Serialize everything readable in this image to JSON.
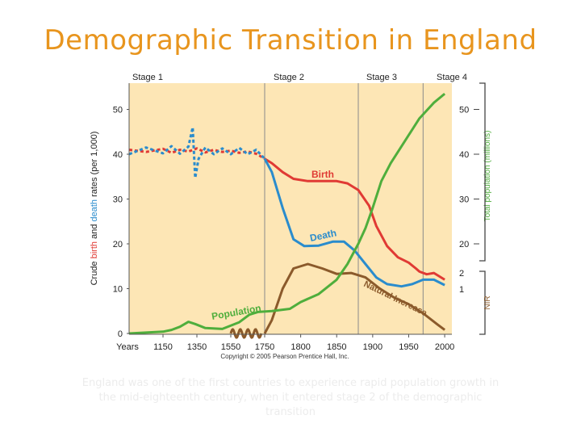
{
  "slide": {
    "title": "Demographic Transition in England",
    "caption": "England was one of the first countries to experience rapid population growth in the mid-eighteenth century, when it entered stage 2 of the demographic transition"
  },
  "chart_data": {
    "type": "line",
    "title": "Demographic Transition in England",
    "stages": [
      {
        "name": "Stage 1",
        "start": 1050,
        "end": 1750
      },
      {
        "name": "Stage 2",
        "start": 1750,
        "end": 1880
      },
      {
        "name": "Stage 3",
        "start": 1880,
        "end": 1970
      },
      {
        "name": "Stage 4",
        "start": 1970,
        "end": 2010
      }
    ],
    "xlabel": "Years",
    "x_ticks": [
      1150,
      1350,
      1550,
      1750,
      1800,
      1850,
      1900,
      1950,
      2000
    ],
    "x_tick_labels": [
      "Years",
      "1150",
      "1350",
      "1550",
      "1750",
      "1800",
      "1850",
      "1900",
      "1950",
      "2000"
    ],
    "left_axis": {
      "label_parts": [
        {
          "text": "Crude ",
          "color": "#222222"
        },
        {
          "text": "birth",
          "color": "#e03a34"
        },
        {
          "text": " and ",
          "color": "#222222"
        },
        {
          "text": "death",
          "color": "#2a8ccd"
        },
        {
          "text": " rates (per 1,000)",
          "color": "#222222"
        }
      ],
      "ticks": [
        0,
        10,
        20,
        30,
        40,
        50
      ],
      "ylim": [
        0,
        55
      ]
    },
    "right_axis": {
      "pop_label": "Total population (millions)",
      "pop_ticks": [
        20,
        30,
        40,
        50
      ],
      "nir_label": "NIR",
      "nir_ticks": [
        1,
        2
      ]
    },
    "series": [
      {
        "name": "Birth",
        "color": "#e03a34",
        "points": [
          [
            1050,
            41
          ],
          [
            1100,
            40.5
          ],
          [
            1150,
            41.2
          ],
          [
            1200,
            40.3
          ],
          [
            1250,
            41
          ],
          [
            1300,
            40.6
          ],
          [
            1350,
            41.3
          ],
          [
            1400,
            40.4
          ],
          [
            1450,
            41
          ],
          [
            1500,
            40.5
          ],
          [
            1550,
            40.8
          ],
          [
            1600,
            40.3
          ],
          [
            1650,
            40.6
          ],
          [
            1700,
            40.1
          ],
          [
            1750,
            39
          ],
          [
            1760,
            38
          ],
          [
            1775,
            36
          ],
          [
            1790,
            34.5
          ],
          [
            1810,
            34
          ],
          [
            1830,
            34
          ],
          [
            1850,
            34
          ],
          [
            1865,
            33.5
          ],
          [
            1880,
            32
          ],
          [
            1895,
            28.5
          ],
          [
            1905,
            24
          ],
          [
            1920,
            19.5
          ],
          [
            1935,
            17
          ],
          [
            1950,
            15.8
          ],
          [
            1960,
            14.5
          ],
          [
            1965,
            13.8
          ],
          [
            1975,
            13.2
          ],
          [
            1985,
            13.5
          ],
          [
            2000,
            12
          ]
        ]
      },
      {
        "name": "Death",
        "color": "#2a8ccd",
        "points": [
          [
            1050,
            40
          ],
          [
            1100,
            41.5
          ],
          [
            1150,
            40.2
          ],
          [
            1200,
            41.8
          ],
          [
            1250,
            40.1
          ],
          [
            1300,
            41.7
          ],
          [
            1325,
            46
          ],
          [
            1340,
            34.7
          ],
          [
            1360,
            39
          ],
          [
            1400,
            41.5
          ],
          [
            1450,
            40
          ],
          [
            1500,
            41.3
          ],
          [
            1550,
            40
          ],
          [
            1600,
            41.4
          ],
          [
            1650,
            40
          ],
          [
            1700,
            41
          ],
          [
            1750,
            39
          ],
          [
            1760,
            36
          ],
          [
            1775,
            28
          ],
          [
            1790,
            21
          ],
          [
            1805,
            19.5
          ],
          [
            1825,
            19.6
          ],
          [
            1845,
            20.5
          ],
          [
            1860,
            20.5
          ],
          [
            1875,
            18.5
          ],
          [
            1890,
            15.5
          ],
          [
            1905,
            12.5
          ],
          [
            1920,
            11
          ],
          [
            1940,
            10.5
          ],
          [
            1955,
            11
          ],
          [
            1970,
            12
          ],
          [
            1985,
            12
          ],
          [
            2000,
            10.8
          ]
        ]
      },
      {
        "name": "Natural Increase",
        "color": "#8b5a2b",
        "points": [
          [
            1750,
            0
          ],
          [
            1760,
            3
          ],
          [
            1775,
            10
          ],
          [
            1790,
            14.5
          ],
          [
            1810,
            15.5
          ],
          [
            1830,
            14.5
          ],
          [
            1850,
            13.3
          ],
          [
            1870,
            13.5
          ],
          [
            1890,
            12.5
          ],
          [
            1910,
            10
          ],
          [
            1930,
            8
          ],
          [
            1950,
            6.5
          ],
          [
            1970,
            4.5
          ],
          [
            1990,
            2
          ],
          [
            2000,
            0.8
          ]
        ]
      },
      {
        "name": "Population",
        "color": "#4fae3c",
        "points": [
          [
            1050,
            0
          ],
          [
            1100,
            0.2
          ],
          [
            1150,
            0.4
          ],
          [
            1200,
            0.8
          ],
          [
            1250,
            1.5
          ],
          [
            1300,
            2.6
          ],
          [
            1340,
            2.1
          ],
          [
            1400,
            1.2
          ],
          [
            1500,
            1
          ],
          [
            1600,
            2.5
          ],
          [
            1660,
            4.2
          ],
          [
            1710,
            4.8
          ],
          [
            1760,
            5
          ],
          [
            1785,
            5.5
          ],
          [
            1800,
            7
          ],
          [
            1825,
            8.8
          ],
          [
            1850,
            12
          ],
          [
            1865,
            15.5
          ],
          [
            1880,
            20
          ],
          [
            1890,
            23.5
          ],
          [
            1900,
            28
          ],
          [
            1912,
            34
          ],
          [
            1925,
            38
          ],
          [
            1945,
            43
          ],
          [
            1965,
            48
          ],
          [
            1985,
            51.5
          ],
          [
            2000,
            53.5
          ]
        ]
      }
    ],
    "pre_increase_wave": {
      "name": "Natural Increase (fluctuating)",
      "color": "#8b5a2b",
      "x_start": 1550,
      "x_end": 1730,
      "amplitude": 0.9,
      "cycles": 4
    },
    "series_labels": [
      {
        "series": "Birth",
        "text": "Birth"
      },
      {
        "series": "Death",
        "text": "Death"
      },
      {
        "series": "Population",
        "text": "Population"
      },
      {
        "series": "Natural Increase",
        "text": "Natural Increase"
      }
    ],
    "copyright": "Copyright © 2005 Pearson Prentice Hall, Inc."
  }
}
